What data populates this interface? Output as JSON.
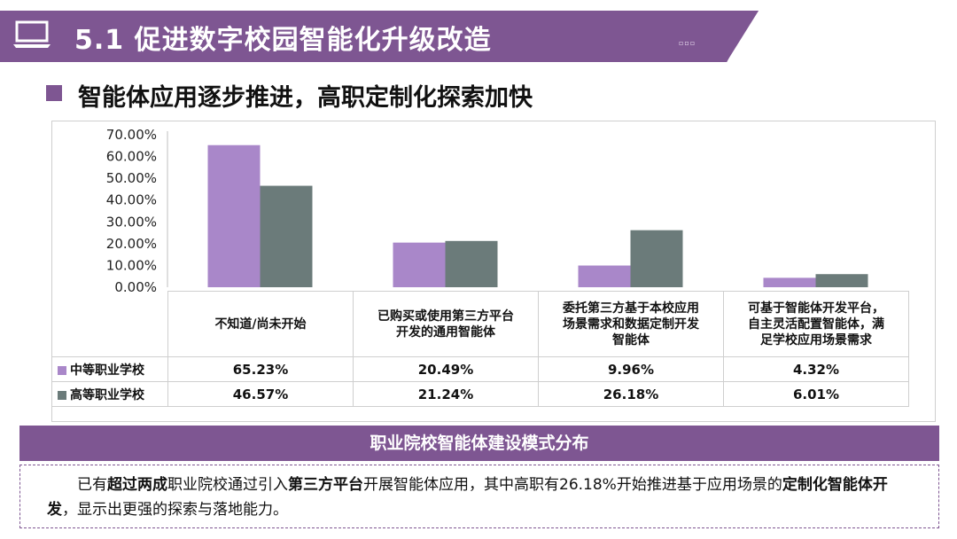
{
  "header": {
    "title": "5.1 促进数字校园智能化升级改造",
    "icon": "laptop-icon",
    "color": "#7e5692"
  },
  "subtitle": "智能体应用逐步推进，高职定制化探索加快",
  "chart_data": {
    "type": "bar",
    "categories": [
      "不知道/尚未开始",
      "已购买或使用第三方平台开发的通用智能体",
      "委托第三方基于本校应用场景需求和数据定制开发智能体",
      "可基于智能体开发平台，自主灵活配置智能体，满足学校应用场景需求"
    ],
    "series": [
      {
        "name": "中等职业学校",
        "values": [
          65.23,
          20.49,
          9.96,
          4.32
        ],
        "labels": [
          "65.23%",
          "20.49%",
          "9.96%",
          "4.32%"
        ],
        "color": "#a987c9"
      },
      {
        "name": "高等职业学校",
        "values": [
          46.57,
          21.24,
          26.18,
          6.01
        ],
        "labels": [
          "46.57%",
          "21.24%",
          "26.18%",
          "6.01%"
        ],
        "color": "#6b7b7a"
      }
    ],
    "ylim": [
      0,
      70
    ],
    "yticks": [
      "70.00%",
      "60.00%",
      "50.00%",
      "40.00%",
      "30.00%",
      "20.00%",
      "10.00%",
      "0.00%"
    ],
    "ytick_values": [
      70,
      60,
      50,
      40,
      30,
      20,
      10,
      0
    ],
    "grid": false,
    "legend": "data-table"
  },
  "table": {
    "cat_lines": [
      [
        "不知道/尚未开始"
      ],
      [
        "已购买或使用第三方平台",
        "开发的通用智能体"
      ],
      [
        "委托第三方基于本校应用",
        "场景需求和数据定制开发",
        "智能体"
      ],
      [
        "可基于智能体开发平台，",
        "自主灵活配置智能体，满",
        "足学校应用场景需求"
      ]
    ]
  },
  "caption": "职业院校智能体建设模式分布",
  "note": {
    "p1": "已有",
    "b1": "超过两成",
    "p2": "职业院校通过引入",
    "b2": "第三方平台",
    "p3": "开展智能体应用，其中高职有26.18%开始推进基于应用场景",
    "p4": "的",
    "b3": "定制化智能体开发",
    "p5": "，显示出更强的探索与落地能力。"
  }
}
